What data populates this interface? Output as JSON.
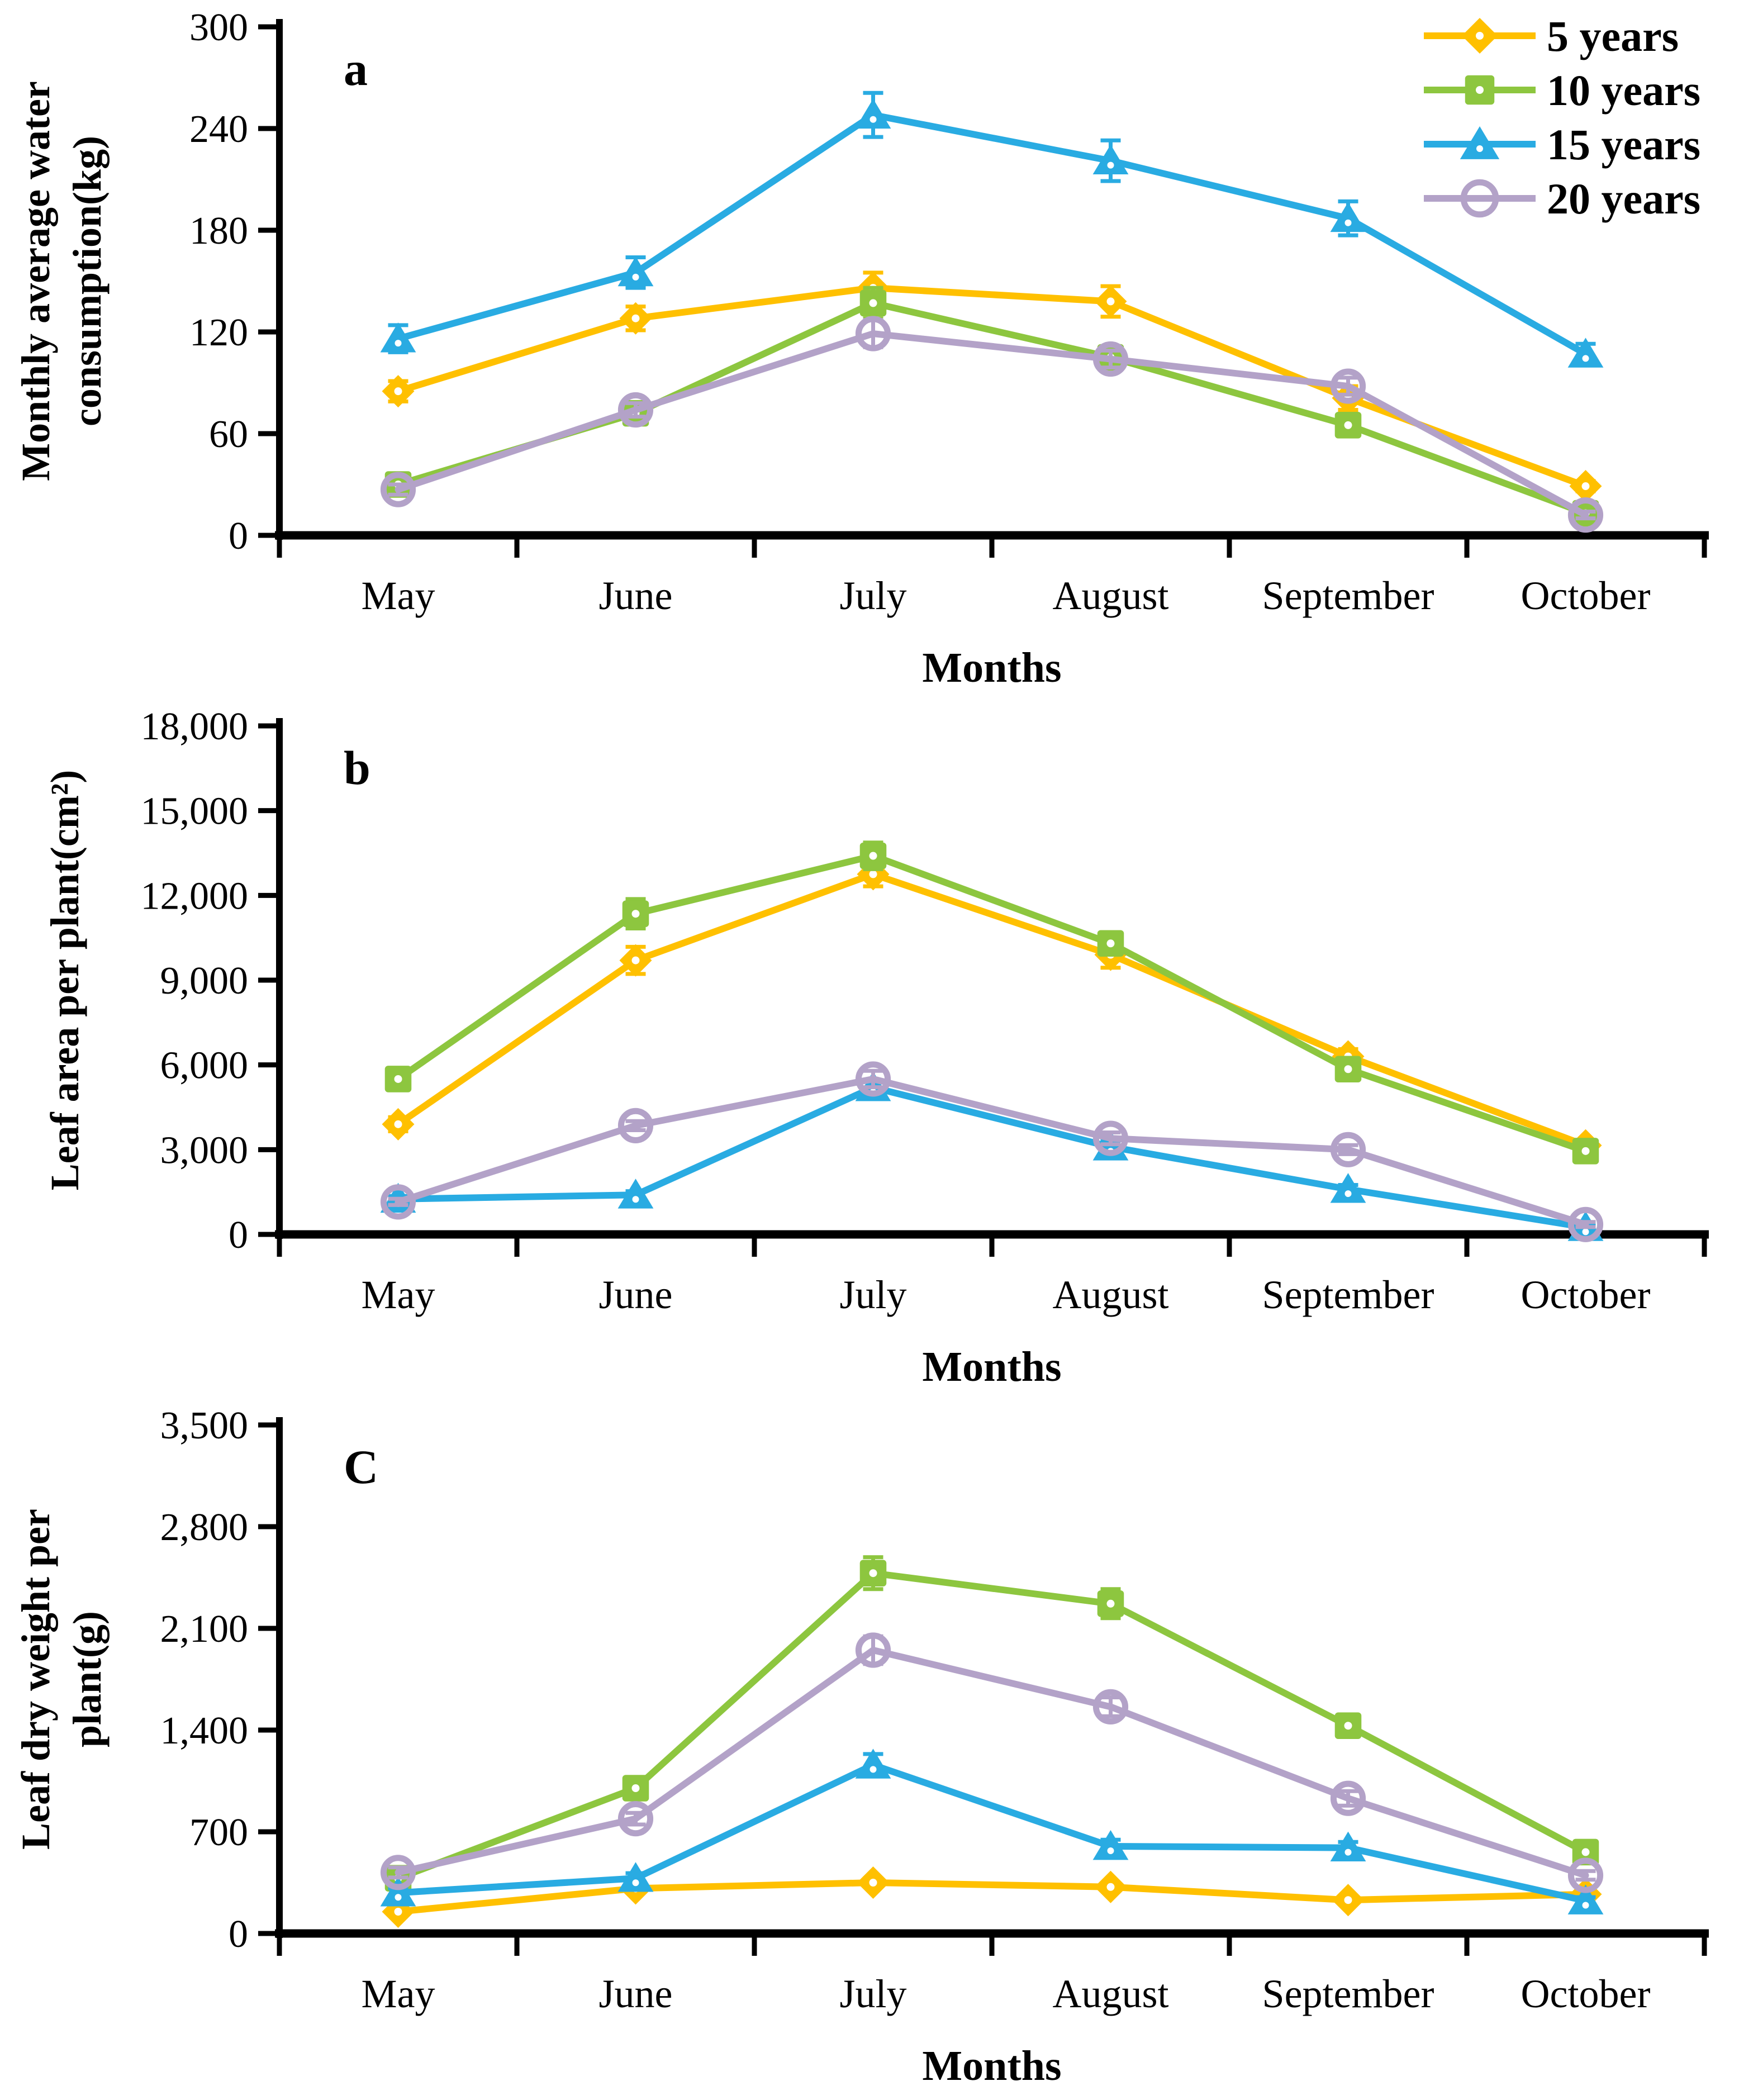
{
  "figure": {
    "months": [
      "May",
      "June",
      "July",
      "August",
      "September",
      "October"
    ],
    "xlabel": "Months",
    "background": "#ffffff",
    "axis_color": "#000000",
    "legend": {
      "position": "top-right-of-panel-a",
      "items": [
        {
          "label": "5 years",
          "color": "#FFC000",
          "marker": "diamond"
        },
        {
          "label": "10 years",
          "color": "#8DC63F",
          "marker": "square"
        },
        {
          "label": "15 years",
          "color": "#29ABE2",
          "marker": "triangle"
        },
        {
          "label": "20 years",
          "color": "#B3A2C8",
          "marker": "circle-open"
        }
      ]
    }
  },
  "chart_data": [
    {
      "id": "a",
      "type": "line",
      "panel_label": "a",
      "title": "",
      "xlabel": "Months",
      "ylabel": "Monthly average water consumption(kg)",
      "ylabel_lines": [
        "Monthly average water",
        "consumption(kg)"
      ],
      "categories": [
        "May",
        "June",
        "July",
        "August",
        "September",
        "October"
      ],
      "ylim": [
        0,
        300
      ],
      "ytick_labels": [
        "0",
        "60",
        "120",
        "180",
        "240",
        "300"
      ],
      "grid": false,
      "legend_visible": true,
      "series": [
        {
          "name": "5 years",
          "marker": "diamond",
          "color": "#FFC000",
          "values": [
            85,
            128,
            146,
            138,
            81,
            29
          ],
          "errors": [
            6,
            7,
            9,
            9,
            7,
            3
          ]
        },
        {
          "name": "10 years",
          "marker": "square",
          "color": "#8DC63F",
          "values": [
            30,
            72,
            137,
            105,
            65,
            13
          ],
          "errors": [
            3,
            4,
            9,
            5,
            4,
            2
          ]
        },
        {
          "name": "15 years",
          "marker": "triangle",
          "color": "#29ABE2",
          "values": [
            116,
            155,
            248,
            221,
            187,
            107
          ],
          "errors": [
            8,
            9,
            13,
            12,
            10,
            6
          ]
        },
        {
          "name": "20 years",
          "marker": "circle-open",
          "color": "#B3A2C8",
          "values": [
            27,
            74,
            119,
            104,
            88,
            12
          ],
          "errors": [
            3,
            4,
            8,
            5,
            5,
            2
          ]
        }
      ]
    },
    {
      "id": "b",
      "type": "line",
      "panel_label": "b",
      "title": "",
      "xlabel": "Months",
      "ylabel": "Leaf area per plant(cm²)",
      "ylabel_lines": [
        "Leaf area per plant(cm²)"
      ],
      "categories": [
        "May",
        "June",
        "July",
        "August",
        "September",
        "October"
      ],
      "ylim": [
        0,
        18000
      ],
      "ytick_labels": [
        "0",
        "3,000",
        "6,000",
        "9,000",
        "12,000",
        "15,000",
        "18,000"
      ],
      "grid": false,
      "legend_visible": false,
      "series": [
        {
          "name": "5 years",
          "marker": "diamond",
          "color": "#FFC000",
          "values": [
            3900,
            9700,
            12750,
            9900,
            6300,
            3150
          ],
          "errors": [
            250,
            480,
            430,
            460,
            260,
            160
          ]
        },
        {
          "name": "10 years",
          "marker": "square",
          "color": "#8DC63F",
          "values": [
            5500,
            11350,
            13400,
            10300,
            5850,
            2950
          ],
          "errors": [
            280,
            520,
            470,
            400,
            260,
            160
          ]
        },
        {
          "name": "15 years",
          "marker": "triangle",
          "color": "#29ABE2",
          "values": [
            1250,
            1400,
            5200,
            3100,
            1600,
            250
          ],
          "errors": [
            110,
            130,
            260,
            210,
            150,
            90
          ]
        },
        {
          "name": "20 years",
          "marker": "circle-open",
          "color": "#B3A2C8",
          "values": [
            1150,
            3850,
            5500,
            3400,
            3000,
            350
          ],
          "errors": [
            110,
            160,
            290,
            210,
            160,
            90
          ]
        }
      ]
    },
    {
      "id": "c",
      "type": "line",
      "panel_label": "C",
      "title": "",
      "xlabel": "Months",
      "ylabel": "Leaf dry weight per plant(g)",
      "ylabel_lines": [
        "Leaf dry weight per",
        "plant(g)"
      ],
      "categories": [
        "May",
        "June",
        "July",
        "August",
        "September",
        "October"
      ],
      "ylim": [
        0,
        3500
      ],
      "ytick_labels": [
        "0",
        "700",
        "1,400",
        "2,100",
        "2,800",
        "3,500"
      ],
      "grid": false,
      "legend_visible": false,
      "series": [
        {
          "name": "5 years",
          "marker": "diamond",
          "color": "#FFC000",
          "values": [
            150,
            310,
            350,
            320,
            230,
            270
          ],
          "errors": [
            20,
            25,
            30,
            25,
            20,
            20
          ]
        },
        {
          "name": "10 years",
          "marker": "square",
          "color": "#8DC63F",
          "values": [
            380,
            1000,
            2480,
            2270,
            1430,
            560
          ],
          "errors": [
            40,
            50,
            110,
            100,
            60,
            35
          ]
        },
        {
          "name": "15 years",
          "marker": "triangle",
          "color": "#29ABE2",
          "values": [
            280,
            380,
            1160,
            600,
            590,
            225
          ],
          "errors": [
            30,
            35,
            75,
            45,
            40,
            25
          ]
        },
        {
          "name": "20 years",
          "marker": "circle-open",
          "color": "#B3A2C8",
          "values": [
            420,
            790,
            1950,
            1560,
            930,
            400
          ],
          "errors": [
            35,
            40,
            95,
            65,
            50,
            30
          ]
        }
      ]
    }
  ]
}
